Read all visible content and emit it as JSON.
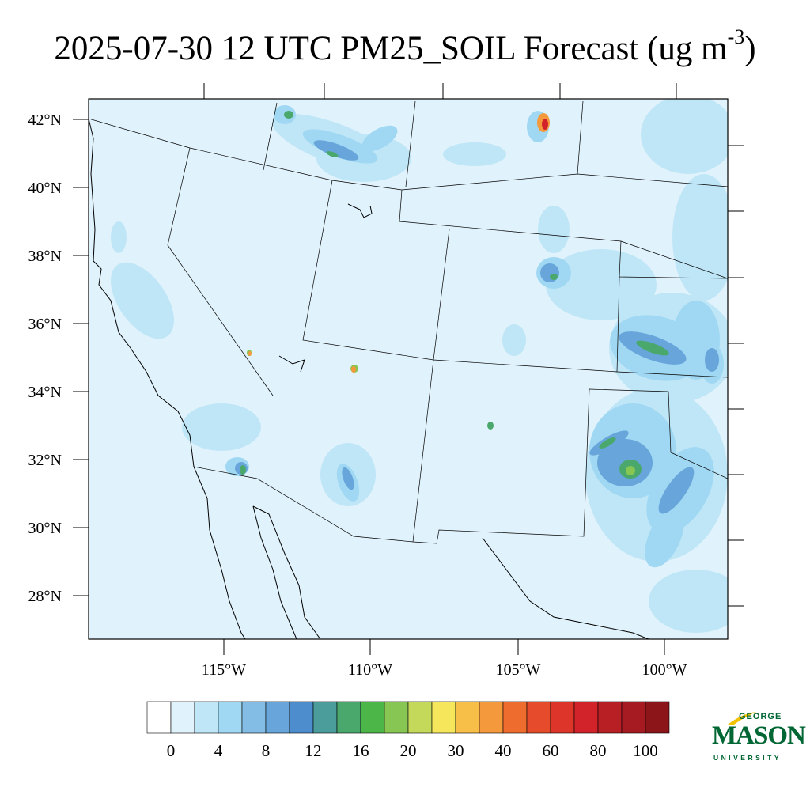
{
  "title": {
    "main": "2025-07-30 12 UTC PM25_SOIL Forecast (ug m",
    "sup": "-3",
    "close": ")"
  },
  "map": {
    "lat_labels": [
      "42°N",
      "40°N",
      "38°N",
      "36°N",
      "34°N",
      "32°N",
      "30°N",
      "28°N"
    ],
    "lon_labels": [
      "115°W",
      "110°W",
      "105°W",
      "100°W"
    ],
    "base_color": "#e0f2fb"
  },
  "colorbar": {
    "colors": [
      "#ffffff",
      "#e0f2fb",
      "#bfe6f7",
      "#a0d8f3",
      "#83bde5",
      "#67a5da",
      "#4d8ccd",
      "#4a9d9a",
      "#4aa86d",
      "#4cb748",
      "#87c652",
      "#c4d959",
      "#f6e65b",
      "#f8bf48",
      "#f49a3d",
      "#ee6d2e",
      "#e64c2b",
      "#dd3529",
      "#d2232a",
      "#b71f25",
      "#a51b21",
      "#8b1519"
    ],
    "labels": [
      "0",
      "4",
      "8",
      "12",
      "16",
      "20",
      "30",
      "40",
      "60",
      "80",
      "100"
    ]
  },
  "logo": {
    "top": "GEORGE",
    "middle": "MASON",
    "bottom": "UNIVERSITY",
    "color": "#006633",
    "accent": "#f2c200"
  }
}
